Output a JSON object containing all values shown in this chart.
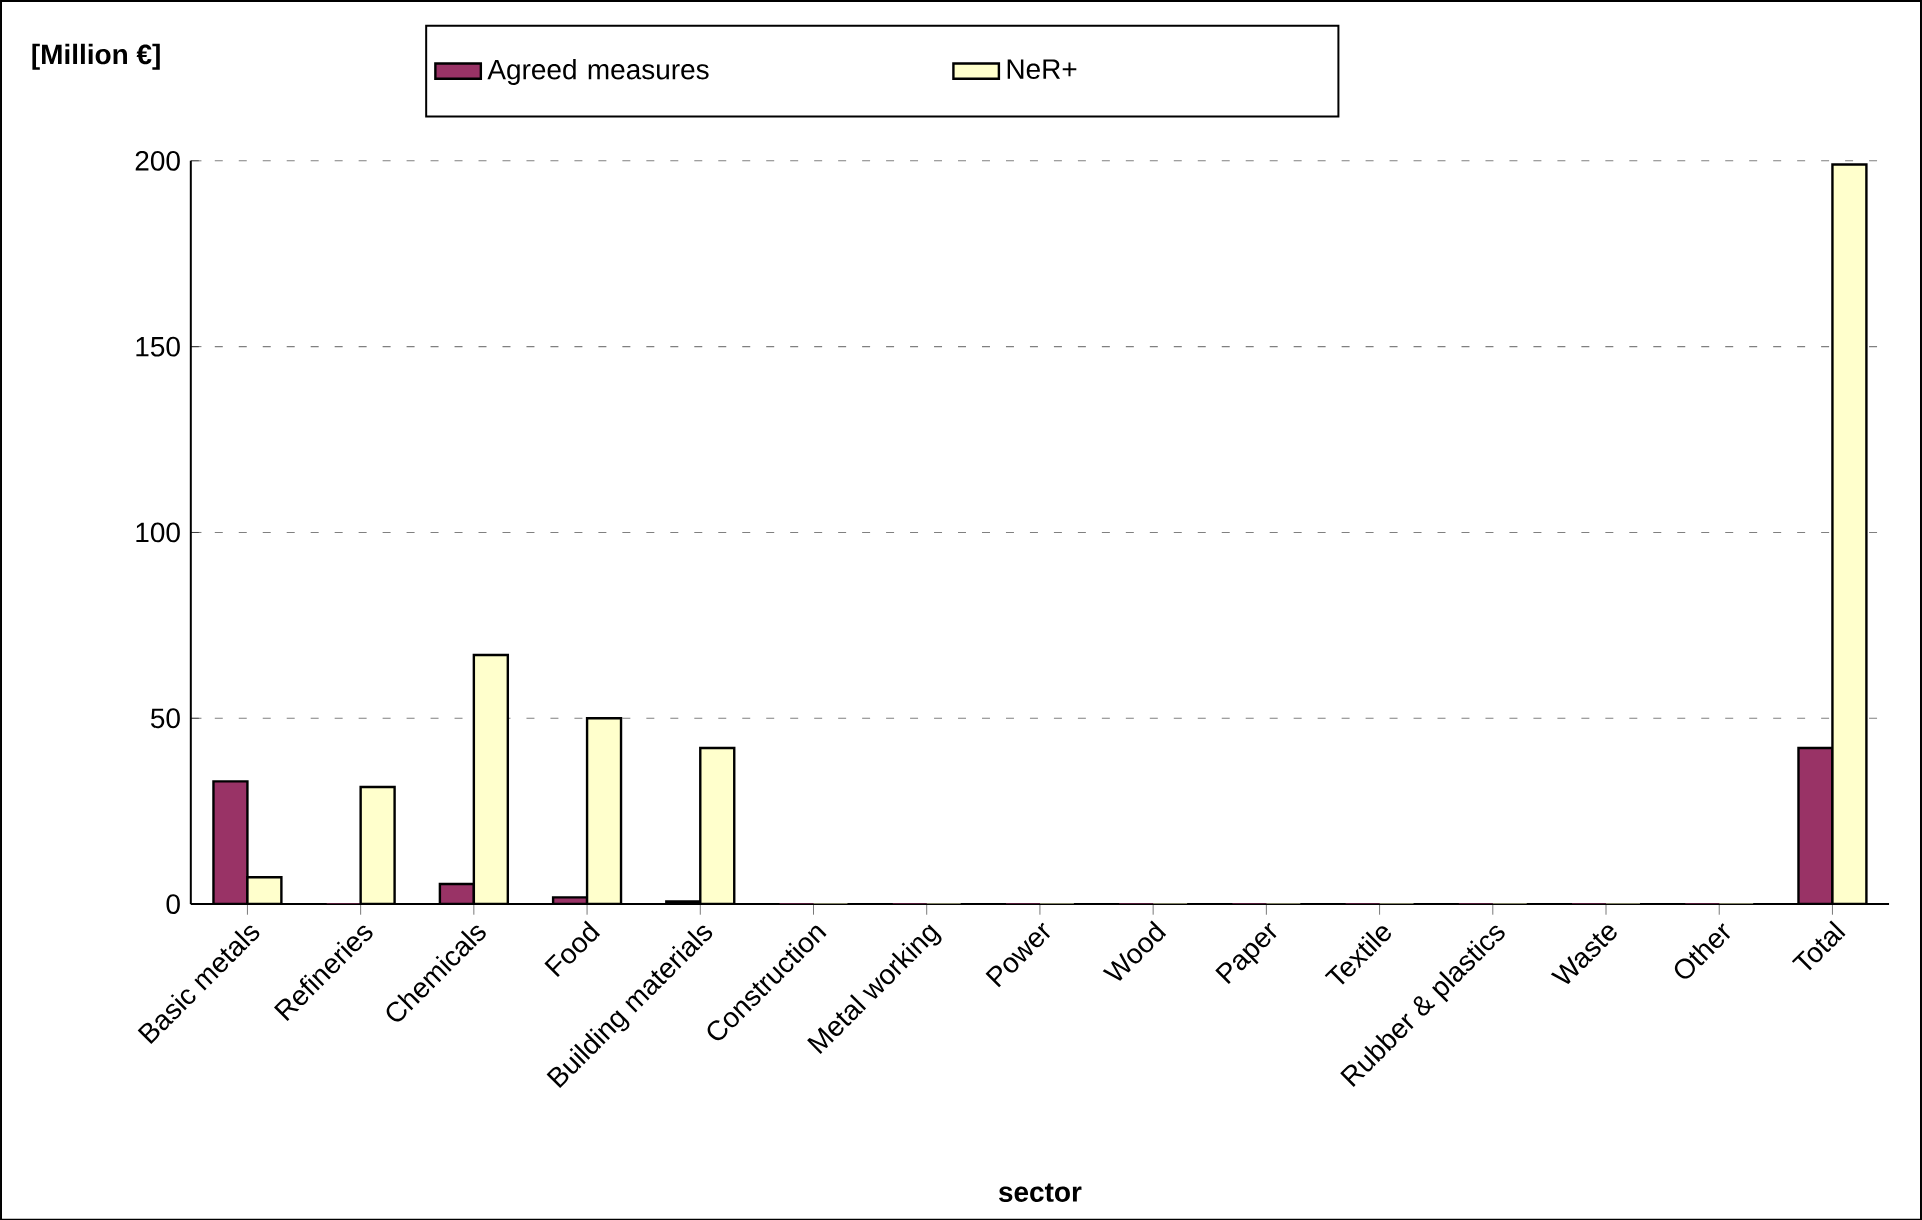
{
  "chart_data": {
    "type": "bar",
    "ylabel": "[Million €]",
    "xlabel": "sector",
    "categories": [
      "Basic metals",
      "Refineries",
      "Chemicals",
      "Food",
      "Building materials",
      "Construction",
      "Metal working",
      "Power",
      "Wood",
      "Paper",
      "Textile",
      "Rubber & plastics",
      "Waste",
      "Other",
      "Total"
    ],
    "series": [
      {
        "name": "Agreed measures",
        "color": "#993366",
        "values": [
          33,
          0,
          5.4,
          1.8,
          0.7,
          0,
          0,
          0,
          0,
          0,
          0,
          0,
          0,
          0,
          42
        ]
      },
      {
        "name": "NeR+",
        "color": "#ffffcc",
        "values": [
          7.2,
          31.5,
          67,
          50,
          42,
          0,
          0,
          0,
          0,
          0,
          0,
          0,
          0,
          0,
          199
        ]
      }
    ],
    "ylim": [
      0,
      200
    ],
    "yticks": [
      0,
      50,
      100,
      150,
      200
    ],
    "grid": "y",
    "legend": "top"
  }
}
